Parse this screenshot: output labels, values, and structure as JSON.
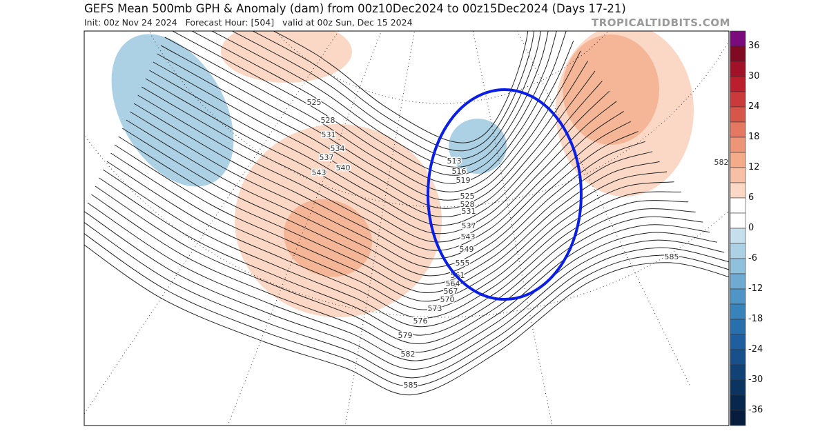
{
  "header": {
    "title": "GEFS Mean 500mb GPH & Anomaly (dam) from 00z10Dec2024 to 00z15Dec2024 (Days 17-21)",
    "subtitle": "Init: 00z Nov 24 2024   Forecast Hour: [504]   valid at 00z Sun, Dec 15 2024",
    "brand": "TROPICALTIDBITS.COM"
  },
  "colorbar": {
    "labels": [
      "36",
      "30",
      "24",
      "18",
      "12",
      "6",
      "0",
      "-6",
      "-12",
      "-18",
      "-24",
      "-30",
      "-36"
    ],
    "colors": [
      "#7b0a7d",
      "#7f0a22",
      "#a11228",
      "#bb1f2e",
      "#cb3a3a",
      "#d6574a",
      "#e47861",
      "#ed9577",
      "#f3ab8a",
      "#f7c0a4",
      "#fbd7c5",
      "#ffffff",
      "#ffffff",
      "#c6dfec",
      "#acd1e5",
      "#8fc0dc",
      "#6eaad1",
      "#4f95c5",
      "#3983bb",
      "#286fae",
      "#1f5f9f",
      "#17508b",
      "#104275",
      "#0b3460",
      "#08274c",
      "#061d3d"
    ]
  },
  "map": {
    "contour_labels": [
      "525",
      "528",
      "531",
      "534",
      "537",
      "540",
      "543",
      "513",
      "516",
      "519",
      "525",
      "528",
      "531",
      "537",
      "543",
      "549",
      "555",
      "561",
      "564",
      "567",
      "570",
      "573",
      "576",
      "579",
      "582",
      "585",
      "585",
      "582"
    ],
    "highlight_color": "#0a1ee6",
    "anomaly_colors": {
      "positive_light": "#fbd7c5",
      "positive_mid": "#f5b697",
      "negative_light": "#acd1e5"
    }
  }
}
